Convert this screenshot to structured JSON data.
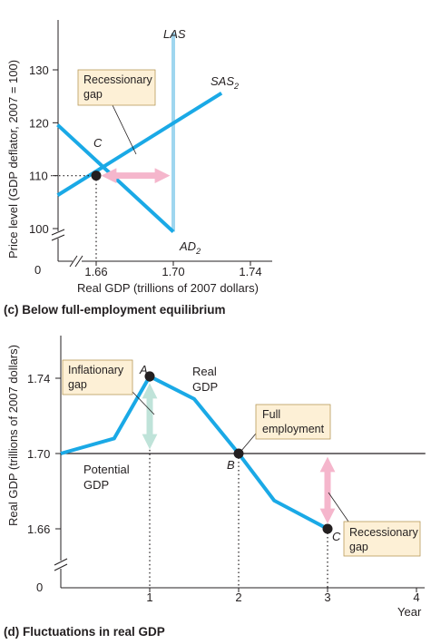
{
  "colors": {
    "curve": "#1aa9e6",
    "las": "#9fd6ef",
    "pink_arrow": "#f5b6cc",
    "green_arrow": "#bfe3d9",
    "label_box_fill": "#fdf0d6",
    "label_box_stroke": "#b89a5a",
    "text": "#231f20"
  },
  "chart_data": [
    {
      "type": "line",
      "caption": "(c) Below full-employment equilibrium",
      "xlabel": "Real GDP (trillions of 2007 dollars)",
      "ylabel": "Price level (GDP deflator, 2007 = 100)",
      "x_ticks": [
        "1.66",
        "1.70",
        "1.74"
      ],
      "y_ticks": [
        "100",
        "110",
        "120",
        "130"
      ],
      "origin_label": "0",
      "xlim": [
        1.66,
        1.74
      ],
      "ylim": [
        100,
        130
      ],
      "series": [
        {
          "name": "SAS₂",
          "x": [
            1.64,
            1.725
          ],
          "y": [
            106.3,
            125.6
          ]
        },
        {
          "name": "AD₂",
          "x": [
            1.64,
            1.7
          ],
          "y": [
            119.6,
            99.4
          ]
        },
        {
          "name": "LAS",
          "x": [
            1.7,
            1.7
          ],
          "y": [
            99.4,
            137
          ]
        }
      ],
      "labels": {
        "las": "LAS",
        "sas": "SAS",
        "sas_sub": "2",
        "ad": "AD",
        "ad_sub": "2"
      },
      "points": [
        {
          "label": "C",
          "x": 1.66,
          "y": 110
        }
      ],
      "annotations": [
        {
          "text_lines": [
            "Recessionary",
            "gap"
          ],
          "x_from": 1.66,
          "x_to": 1.7,
          "y": 110
        }
      ]
    },
    {
      "type": "line",
      "caption": "(d) Fluctuations in real GDP",
      "xlabel": "Year",
      "ylabel": "Real GDP (trillions of 2007 dollars)",
      "x_ticks": [
        "1",
        "2",
        "3",
        "4"
      ],
      "y_ticks": [
        "1.66",
        "1.70",
        "1.74"
      ],
      "origin_label": "0",
      "xlim": [
        0,
        4
      ],
      "ylim": [
        1.66,
        1.74
      ],
      "series": [
        {
          "name": "Real GDP",
          "x": [
            0,
            0.6,
            1.0,
            1.5,
            2.0,
            2.4,
            3.0
          ],
          "y": [
            1.7,
            1.708,
            1.741,
            1.729,
            1.7,
            1.675,
            1.66
          ]
        },
        {
          "name": "Potential GDP",
          "x": [
            0,
            4.1
          ],
          "y": [
            1.7,
            1.7
          ]
        }
      ],
      "labels": {
        "real_gdp_lines": [
          "Real",
          "GDP"
        ],
        "potential_gdp_lines": [
          "Potential",
          "GDP"
        ]
      },
      "points": [
        {
          "label": "A",
          "x": 1,
          "y": 1.741
        },
        {
          "label": "B",
          "x": 2,
          "y": 1.7
        },
        {
          "label": "C",
          "x": 3,
          "y": 1.66
        }
      ],
      "annotations": [
        {
          "text_lines": [
            "Inflationary",
            "gap"
          ],
          "x": 1,
          "y_from": 1.7,
          "y_to": 1.741
        },
        {
          "text_lines": [
            "Full",
            "employment"
          ],
          "x": 2,
          "y": 1.7
        },
        {
          "text_lines": [
            "Recessionary",
            "gap"
          ],
          "x": 3,
          "y_from": 1.66,
          "y_to": 1.7
        }
      ]
    }
  ]
}
